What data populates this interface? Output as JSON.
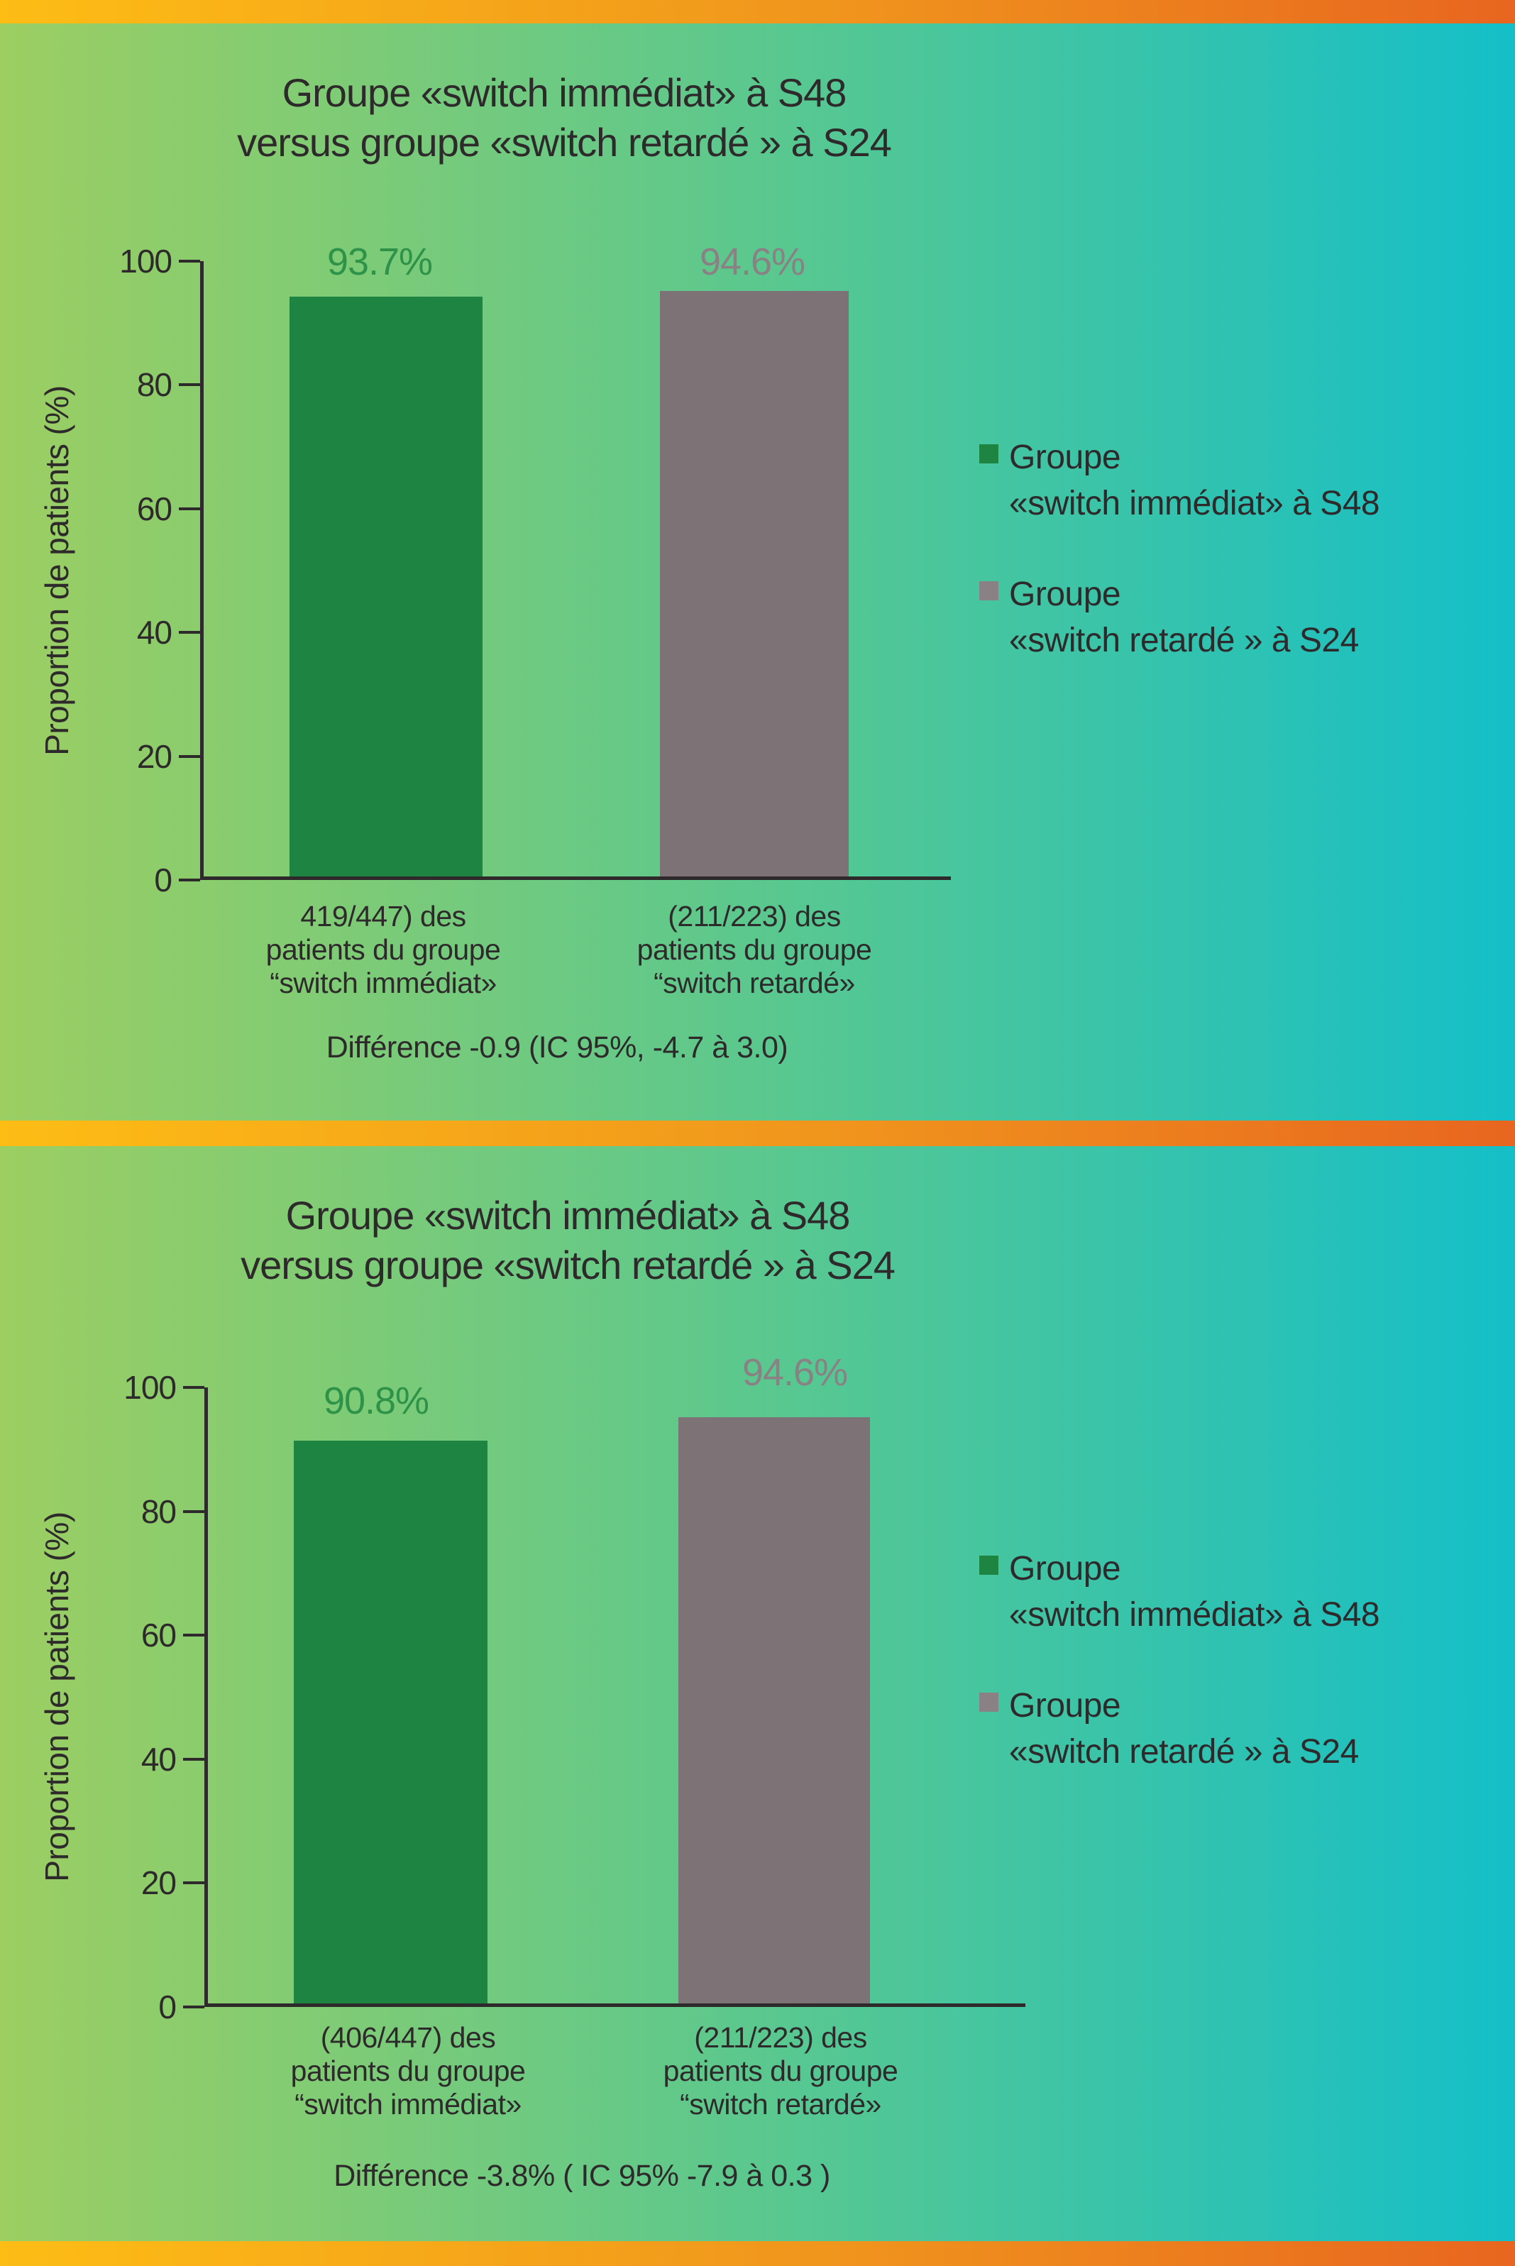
{
  "page": {
    "background_gradient": [
      "#9CCE62",
      "#5BC88E",
      "#14BFC8"
    ],
    "divider_gradient": [
      "#FDBD15",
      "#E8661F"
    ],
    "text_color": "#2E2A2C"
  },
  "chart_data": [
    {
      "type": "bar",
      "title_lines": [
        "Groupe «switch immédiat» à S48",
        "versus groupe «switch retardé » à S24"
      ],
      "ylabel": "Proportion de patients (%)",
      "ylim": [
        0,
        100
      ],
      "ytick_labels": [
        "100",
        "80",
        "60",
        "40",
        "20",
        "0"
      ],
      "grid": false,
      "legend_position": "right",
      "bars": [
        {
          "value": 93.7,
          "value_label": "93.7%",
          "color": "#1E8441",
          "label_color": "#2E9348",
          "legend_color": "#1E8441",
          "legend_lines": [
            "Groupe",
            "«switch immédiat» à S48"
          ],
          "xlabel_lines": [
            "419/447) des",
            "patients du groupe",
            "“switch immédiat»"
          ]
        },
        {
          "value": 94.6,
          "value_label": "94.6%",
          "color": "#7D7377",
          "label_color": "#8A8185",
          "legend_color": "#8A8185",
          "legend_lines": [
            "Groupe",
            "«switch retardé » à S24"
          ],
          "xlabel_lines": [
            "(211/223) des",
            "patients du groupe",
            "“switch retardé»"
          ]
        }
      ],
      "difference": "Différence -0.9 (IC 95%, -4.7 à 3.0)"
    },
    {
      "type": "bar",
      "title_lines": [
        "Groupe «switch immédiat» à S48",
        "versus groupe «switch retardé » à S24"
      ],
      "ylabel": "Proportion de patients (%)",
      "ylim": [
        0,
        100
      ],
      "ytick_labels": [
        "100",
        "80",
        "60",
        "40",
        "20",
        "0"
      ],
      "grid": false,
      "legend_position": "right",
      "bars": [
        {
          "value": 90.8,
          "value_label": "90.8%",
          "color": "#1E8441",
          "label_color": "#2E9348",
          "legend_color": "#1E8441",
          "legend_lines": [
            "Groupe",
            "«switch immédiat» à S48"
          ],
          "xlabel_lines": [
            "(406/447) des",
            "patients du groupe",
            "“switch immédiat»"
          ]
        },
        {
          "value": 94.6,
          "value_label": "94.6%",
          "color": "#7D7377",
          "label_color": "#8A8185",
          "legend_color": "#8A8185",
          "legend_lines": [
            "Groupe",
            "«switch retardé » à S24"
          ],
          "xlabel_lines": [
            "(211/223) des",
            "patients du groupe",
            "“switch retardé»"
          ]
        }
      ],
      "difference": "Différence -3.8% ( IC 95% -7.9 à 0.3 )"
    }
  ]
}
